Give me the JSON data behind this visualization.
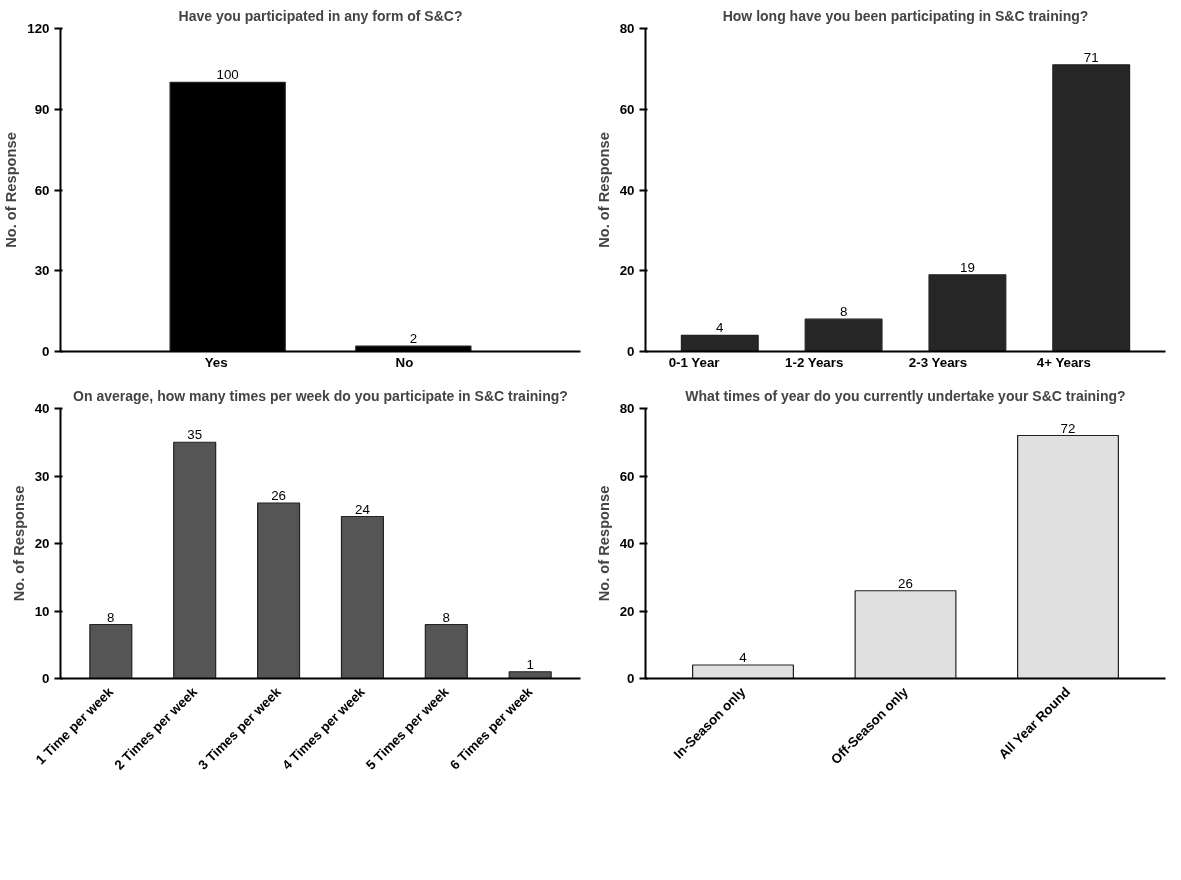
{
  "chart_data": [
    {
      "type": "bar",
      "title": "Have you participated in any form of S&C?",
      "ylabel": "No. of Response",
      "categories": [
        "Yes",
        "No"
      ],
      "values": [
        100,
        2
      ],
      "color": "#000000",
      "ylim": [
        0,
        120
      ],
      "yticks": [
        0,
        30,
        60,
        90,
        120
      ],
      "data_labels": true
    },
    {
      "type": "bar",
      "title": "How long have you been participating in S&C training?",
      "ylabel": "No. of Response",
      "categories": [
        "0-1 Year",
        "1-2 Years",
        "2-3 Years",
        "4+ Years"
      ],
      "values": [
        4,
        8,
        19,
        71
      ],
      "color": "#262626",
      "ylim": [
        0,
        80
      ],
      "yticks": [
        0,
        20,
        40,
        60,
        80
      ],
      "data_labels": true
    },
    {
      "type": "bar",
      "title": "On average, how many times per week do you participate in S&C training?",
      "ylabel": "No. of Response",
      "categories": [
        "1 Time per week",
        "2 Times per week",
        "3 Times per week",
        "4 Times per week",
        "5 Times per week",
        "6 Times per week"
      ],
      "values": [
        8,
        35,
        26,
        24,
        8,
        1
      ],
      "color": "#555555",
      "ylim": [
        0,
        40
      ],
      "yticks": [
        0,
        10,
        20,
        30,
        40
      ],
      "data_labels": true
    },
    {
      "type": "bar",
      "title": "What times of year do you currently undertake your S&C training?",
      "ylabel": "No. of Response",
      "categories": [
        "In-Season only",
        "Off-Season only",
        "All Year Round"
      ],
      "values": [
        4,
        26,
        72
      ],
      "color": "#e0e0e0",
      "ylim": [
        0,
        80
      ],
      "yticks": [
        0,
        20,
        40,
        60,
        80
      ],
      "data_labels": true
    }
  ]
}
